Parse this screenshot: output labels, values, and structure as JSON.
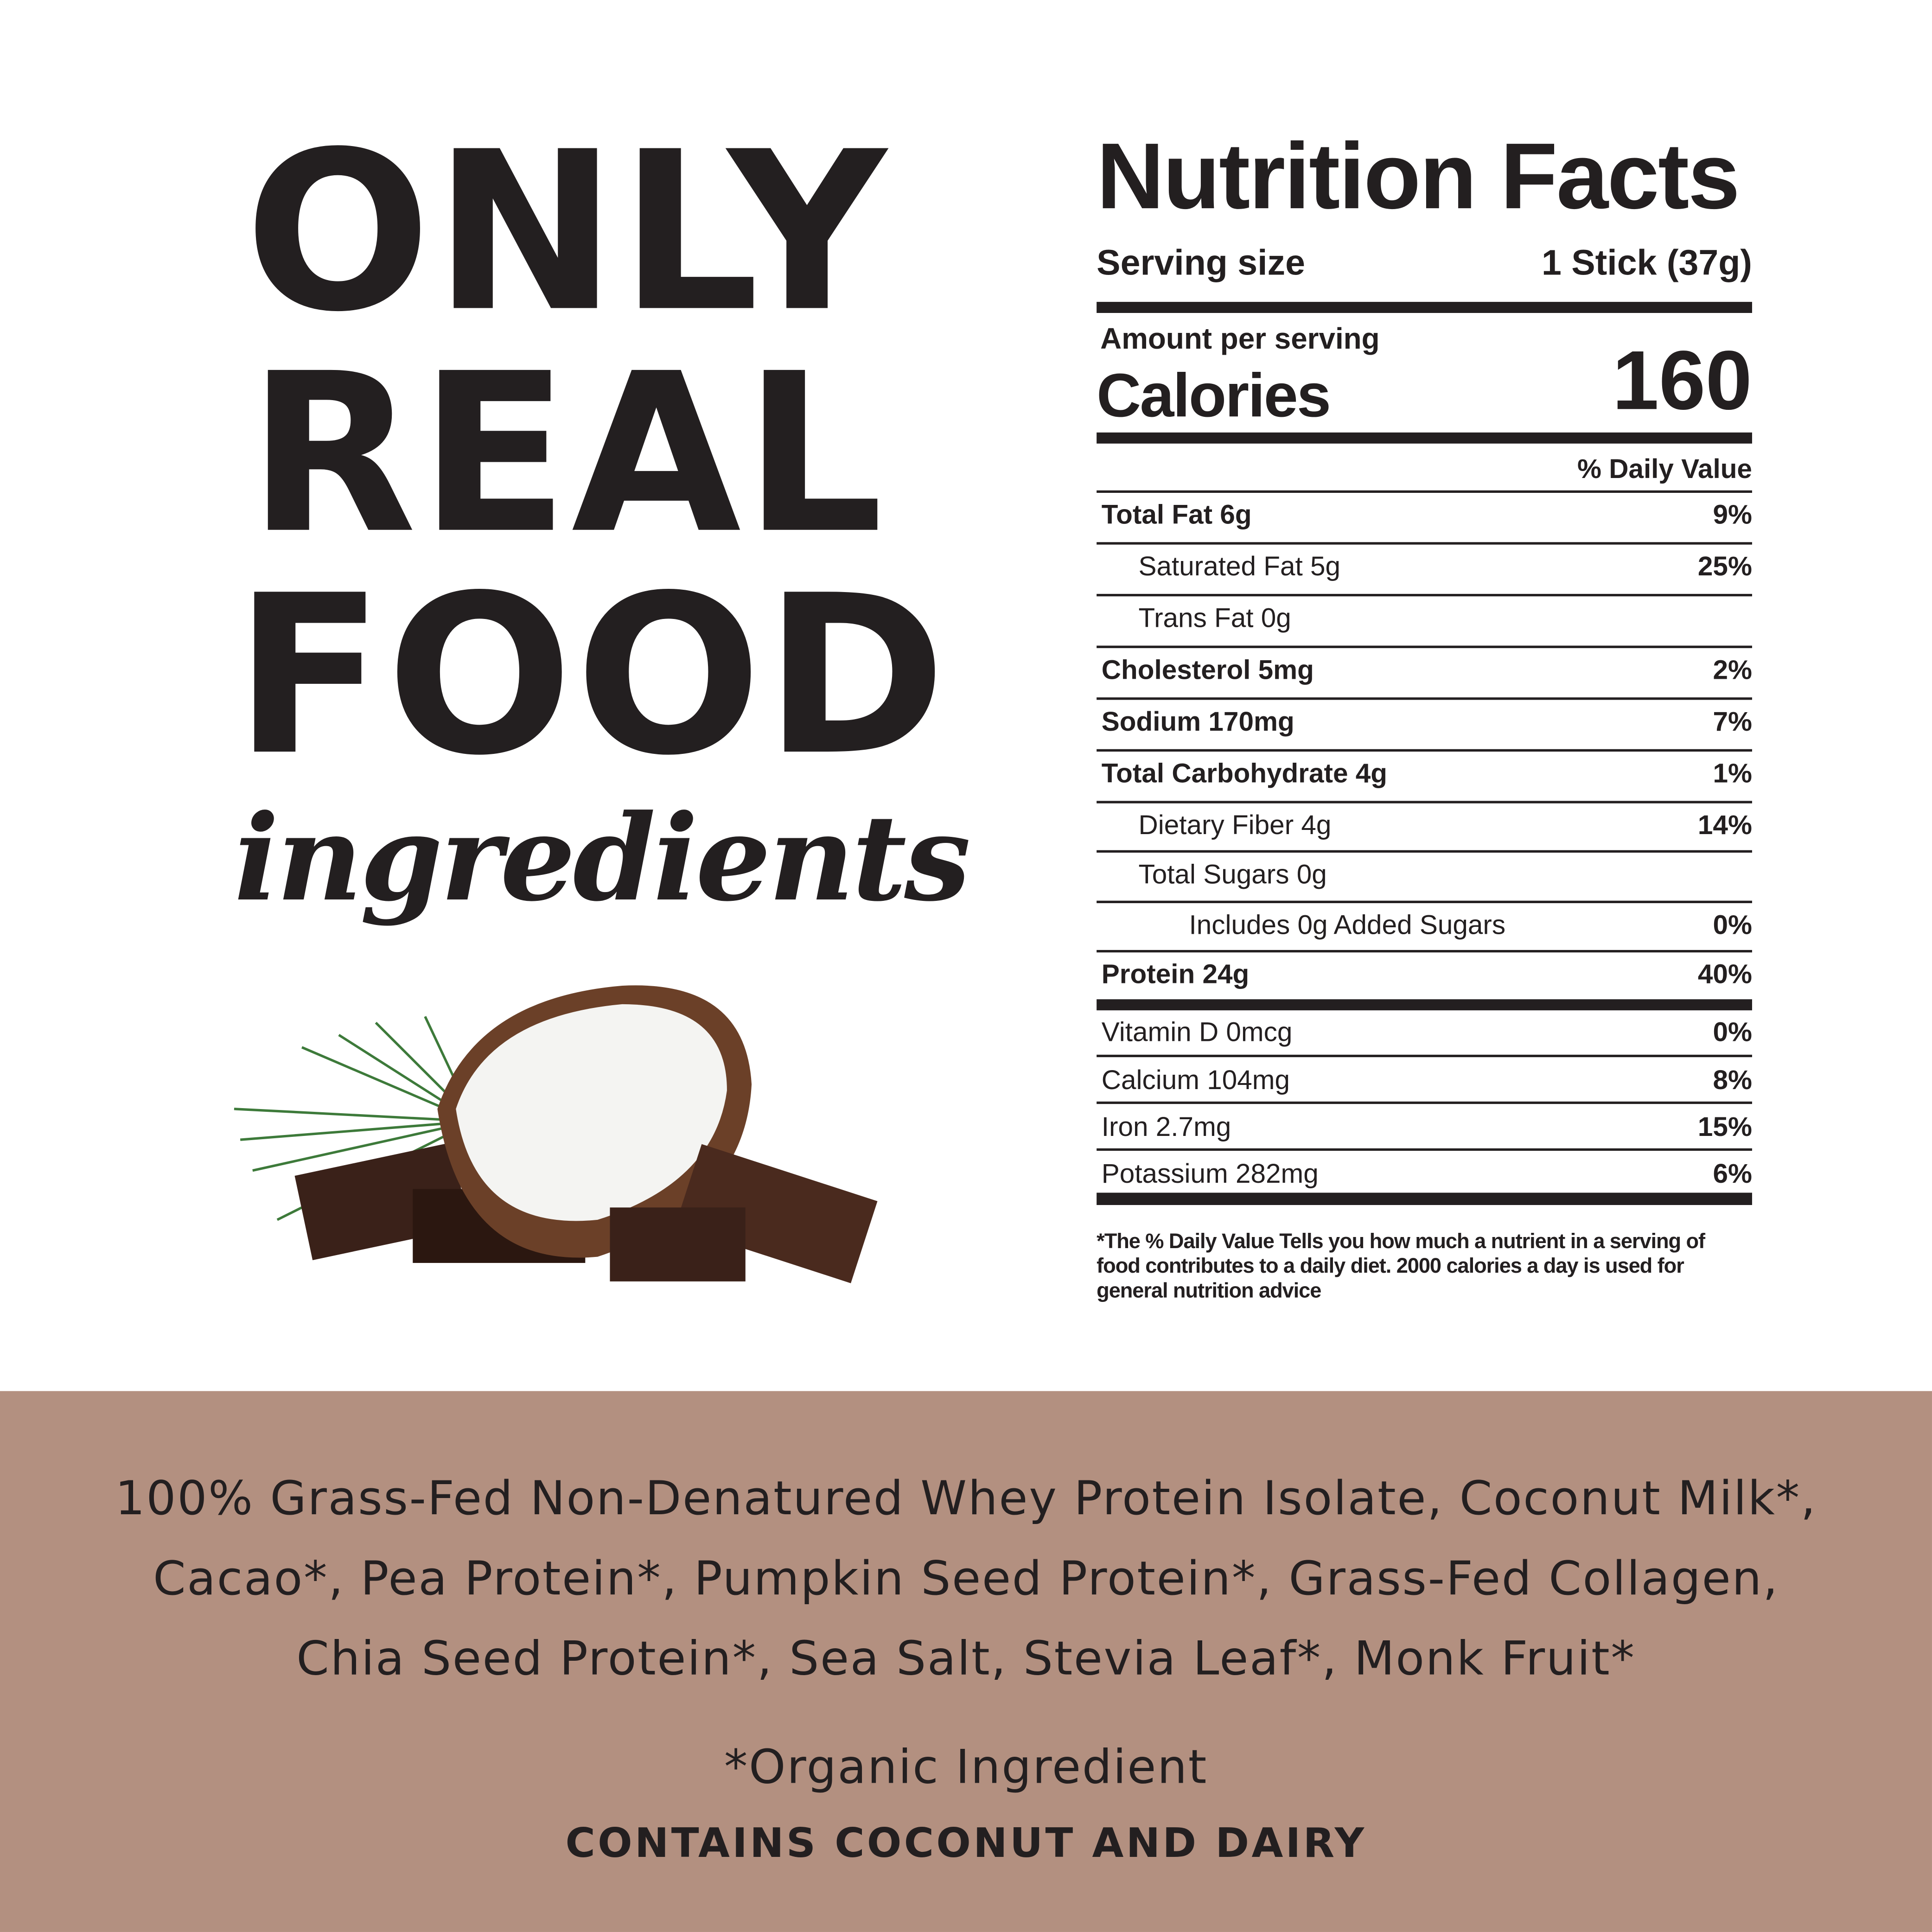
{
  "headline": {
    "line1": "ONLY",
    "line2": "REAL",
    "line3": "FOOD",
    "script": "ingredients"
  },
  "image": {
    "icon": "coconut-chocolate-illustration"
  },
  "nutrition": {
    "title": "Nutrition Facts",
    "serving_label": "Serving size",
    "serving_value": "1 Stick (37g)",
    "amount_label": "Amount per serving",
    "calories_label": "Calories",
    "calories_value": "160",
    "dv_header": "% Daily Value",
    "rows": [
      {
        "label": "Total Fat 6g",
        "dv": "9%"
      },
      {
        "label": "Saturated Fat 5g",
        "dv": "25%"
      },
      {
        "label": "Trans Fat 0g",
        "dv": ""
      },
      {
        "label": "Cholesterol 5mg",
        "dv": "2%"
      },
      {
        "label": "Sodium 170mg",
        "dv": "7%"
      },
      {
        "label": "Total Carbohydrate 4g",
        "dv": "1%"
      },
      {
        "label": "Dietary Fiber 4g",
        "dv": "14%"
      },
      {
        "label": "Total Sugars  0g",
        "dv": ""
      },
      {
        "label": "Includes 0g Added Sugars",
        "dv": "0%"
      },
      {
        "label": "Protein 24g",
        "dv": "40%"
      },
      {
        "label": "Vitamin D 0mcg",
        "dv": "0%"
      },
      {
        "label": "Calcium 104mg",
        "dv": "8%"
      },
      {
        "label": "Iron 2.7mg",
        "dv": "15%"
      },
      {
        "label": "Potassium 282mg",
        "dv": "6%"
      }
    ],
    "footnote": "*The % Daily Value Tells you how much a nutrient in a serving of food contributes to a daily diet. 2000 calories a day is used for general nutrition advice"
  },
  "ingredients": {
    "lines": [
      "100% Grass-Fed Non-Denatured Whey Protein Isolate, Coconut Milk*,",
      "Cacao*, Pea Protein*, Pumpkin Seed Protein*, Grass-Fed Collagen,",
      "Chia Seed Protein*, Sea Salt, Stevia Leaf*, Monk Fruit*"
    ],
    "organic_note": "*Organic Ingredient",
    "allergen": "CONTAINS COCONUT AND DAIRY"
  },
  "colors": {
    "band": "#b39080",
    "text": "#231f20"
  }
}
